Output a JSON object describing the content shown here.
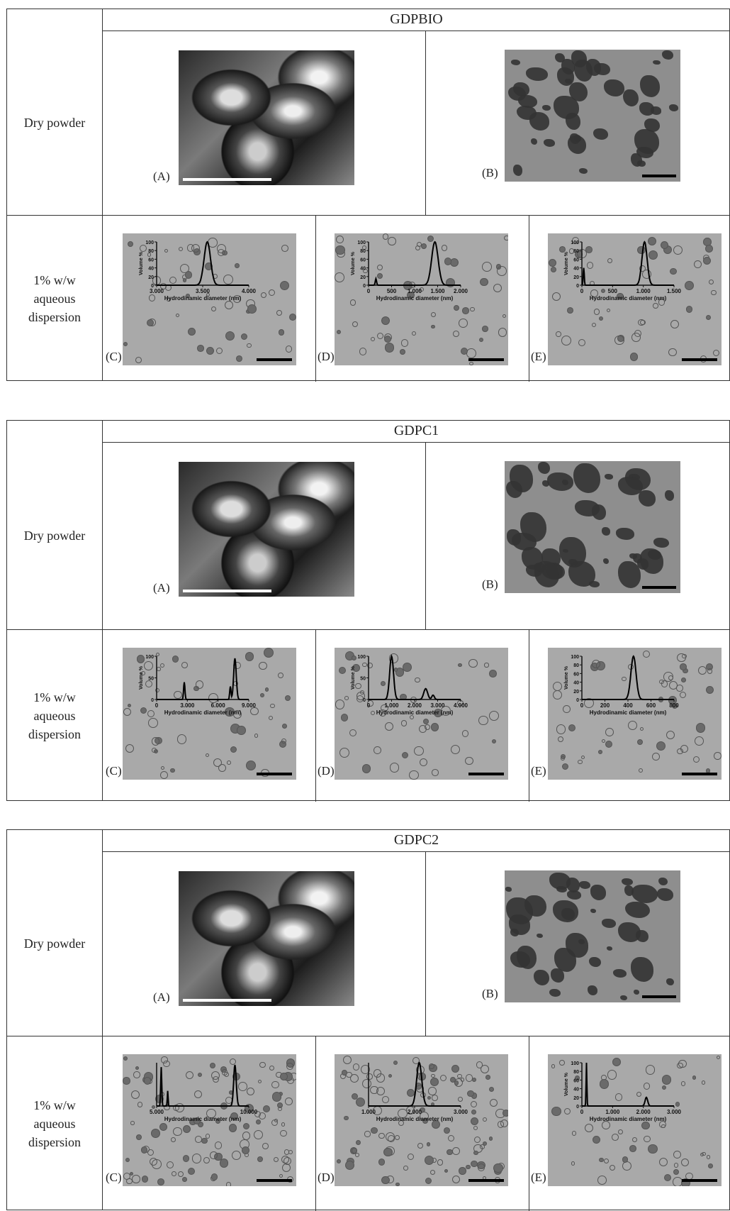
{
  "figure": {
    "blocks": [
      {
        "title": "GDPBIO",
        "row_dry": "Dry powder",
        "row_dispersion": [
          "1% w/w",
          "aqueous",
          "dispersion"
        ],
        "panels": {
          "A": "(A)",
          "B": "(B)",
          "C": "(C)",
          "D": "(D)",
          "E": "(E)"
        },
        "insets": {
          "C": {
            "ticks": [
              "3.000",
              "3.500",
              "4.000"
            ],
            "xlabel": "Hydrodinamic diameter (nm)",
            "ylabel": "Volume %",
            "yticks": [
              "100",
              "80",
              "60",
              "40",
              "20",
              "0"
            ]
          },
          "D": {
            "ticks": [
              "0",
              "500",
              "1.000",
              "1.500",
              "2.000"
            ],
            "xlabel": "Hydrodinamic diameter (nm)",
            "ylabel": "Volume %",
            "yticks": [
              "100",
              "80",
              "60",
              "40",
              "20",
              "0"
            ]
          },
          "E": {
            "ticks": [
              "0",
              "500",
              "1.000",
              "1.500"
            ],
            "xlabel": "Hydrodinamic diameter (nm)",
            "ylabel": "Volume %",
            "yticks": [
              "100",
              "80",
              "60",
              "40",
              "20",
              "0"
            ]
          }
        }
      },
      {
        "title": "GDPC1",
        "row_dry": "Dry powder",
        "row_dispersion": [
          "1% w/w",
          "aqueous",
          "dispersion"
        ],
        "panels": {
          "A": "(A)",
          "B": "(B)",
          "C": "(C)",
          "D": "(D)",
          "E": "(E)"
        },
        "insets": {
          "C": {
            "ticks": [
              "0",
              "3.000",
              "6.000",
              "9.000"
            ],
            "xlabel": "Hydrodinamic diameter (nm)",
            "ylabel": "Volume %",
            "yticks": [
              "100",
              "50",
              "0"
            ]
          },
          "D": {
            "ticks": [
              "0",
              "1.000",
              "2.000",
              "3.000",
              "4.000"
            ],
            "xlabel": "Hydrodinamic diameter (nm)",
            "ylabel": "Volume %",
            "yticks": [
              "100",
              "50",
              "0"
            ]
          },
          "E": {
            "ticks": [
              "0",
              "200",
              "400",
              "600",
              "800"
            ],
            "xlabel": "Hydrodinamic diameter (nm)",
            "ylabel": "Volume %",
            "yticks": [
              "100",
              "80",
              "60",
              "40",
              "20",
              "0"
            ]
          }
        }
      },
      {
        "title": "GDPC2",
        "row_dry": "Dry powder",
        "row_dispersion": [
          "1% w/w",
          "aqueous",
          "dispersion"
        ],
        "panels": {
          "A": "(A)",
          "B": "(B)",
          "C": "(C)",
          "D": "(D)",
          "E": "(E)"
        },
        "insets": {
          "C": {
            "ticks": [
              "5.000",
              "10.000"
            ],
            "xlabel": "Hydrodinamic diameter (nm)",
            "ylabel": "",
            "yticks": []
          },
          "D": {
            "ticks": [
              "1.000",
              "2.000",
              "3.000"
            ],
            "xlabel": "Hydrodinamic diameter (nm)",
            "ylabel": "",
            "yticks": []
          },
          "E": {
            "ticks": [
              "0",
              "1.000",
              "2.000",
              "3.000"
            ],
            "xlabel": "Hydrodinamic diameter (nm)",
            "ylabel": "Volume %",
            "yticks": [
              "100",
              "80",
              "60",
              "40",
              "20",
              "0"
            ]
          }
        }
      }
    ]
  }
}
